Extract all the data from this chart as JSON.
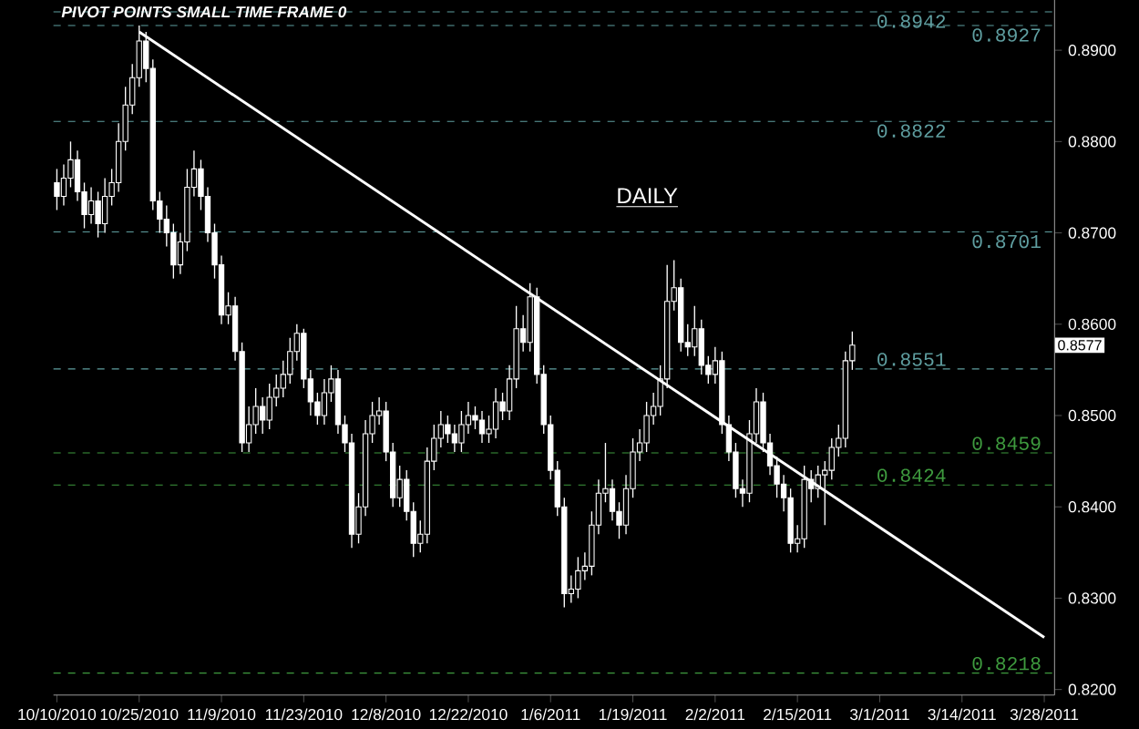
{
  "chart_data": {
    "type": "candlestick",
    "title": "PIVOT POINTS SMALL TIME FRAME 0",
    "color": "#ffffff",
    "categories": [
      "10/10/2010",
      null,
      null,
      null,
      null,
      null,
      null,
      null,
      null,
      null,
      null,
      null,
      "10/25/2010",
      null,
      null,
      null,
      null,
      null,
      null,
      null,
      null,
      null,
      null,
      null,
      "11/9/2010",
      null,
      null,
      null,
      null,
      null,
      null,
      null,
      null,
      null,
      null,
      null,
      "11/23/2010",
      null,
      null,
      null,
      null,
      null,
      null,
      null,
      null,
      null,
      null,
      null,
      "12/8/2010",
      null,
      null,
      null,
      null,
      null,
      null,
      null,
      null,
      null,
      null,
      null,
      "12/22/2010",
      null,
      null,
      null,
      null,
      null,
      null,
      null,
      null,
      null,
      null,
      null,
      "1/6/2011",
      null,
      null,
      null,
      null,
      null,
      null,
      null,
      null,
      null,
      null,
      null,
      "1/19/2011",
      null,
      null,
      null,
      null,
      null,
      null,
      null,
      null,
      null,
      null,
      null,
      "2/2/2011",
      null,
      null,
      null,
      null,
      null,
      null,
      null,
      null,
      null,
      null,
      null,
      "2/15/2011",
      null,
      null,
      null,
      null,
      null,
      null,
      null,
      null,
      null,
      null,
      null,
      "3/1/2011",
      null,
      null,
      null,
      null,
      null,
      null,
      null,
      null,
      null,
      null,
      null,
      "3/14/2011",
      null,
      null,
      null,
      null,
      null,
      null,
      null,
      null,
      null,
      null,
      null,
      "3/28/2011",
      null
    ],
    "ohlc": [
      [
        0.8755,
        0.877,
        0.8725,
        0.874
      ],
      [
        0.874,
        0.8775,
        0.873,
        0.876
      ],
      [
        0.876,
        0.88,
        0.875,
        0.878
      ],
      [
        0.878,
        0.879,
        0.8735,
        0.8745
      ],
      [
        0.8745,
        0.8755,
        0.8705,
        0.872
      ],
      [
        0.872,
        0.875,
        0.871,
        0.8735
      ],
      [
        0.8735,
        0.8745,
        0.8695,
        0.871
      ],
      [
        0.871,
        0.876,
        0.87,
        0.874
      ],
      [
        0.874,
        0.877,
        0.873,
        0.8755
      ],
      [
        0.8755,
        0.882,
        0.8745,
        0.88
      ],
      [
        0.88,
        0.886,
        0.879,
        0.884
      ],
      [
        0.884,
        0.8885,
        0.883,
        0.887
      ],
      [
        0.887,
        0.8927,
        0.886,
        0.891
      ],
      [
        0.891,
        0.892,
        0.8865,
        0.888
      ],
      [
        0.888,
        0.889,
        0.8725,
        0.8735
      ],
      [
        0.8735,
        0.8745,
        0.87,
        0.8715
      ],
      [
        0.8715,
        0.873,
        0.8685,
        0.87
      ],
      [
        0.87,
        0.871,
        0.865,
        0.8665
      ],
      [
        0.8665,
        0.87,
        0.8655,
        0.869
      ],
      [
        0.869,
        0.877,
        0.868,
        0.875
      ],
      [
        0.875,
        0.879,
        0.874,
        0.877
      ],
      [
        0.877,
        0.878,
        0.8725,
        0.874
      ],
      [
        0.874,
        0.875,
        0.869,
        0.87
      ],
      [
        0.87,
        0.871,
        0.865,
        0.8665
      ],
      [
        0.8665,
        0.8675,
        0.86,
        0.861
      ],
      [
        0.861,
        0.8635,
        0.86,
        0.862
      ],
      [
        0.862,
        0.863,
        0.856,
        0.857
      ],
      [
        0.857,
        0.858,
        0.846,
        0.847
      ],
      [
        0.847,
        0.851,
        0.846,
        0.849
      ],
      [
        0.849,
        0.853,
        0.848,
        0.851
      ],
      [
        0.851,
        0.852,
        0.848,
        0.8495
      ],
      [
        0.8495,
        0.8535,
        0.8485,
        0.852
      ],
      [
        0.852,
        0.8545,
        0.851,
        0.853
      ],
      [
        0.853,
        0.856,
        0.852,
        0.8545
      ],
      [
        0.8545,
        0.8585,
        0.8535,
        0.857
      ],
      [
        0.857,
        0.86,
        0.856,
        0.859
      ],
      [
        0.859,
        0.8595,
        0.853,
        0.854
      ],
      [
        0.854,
        0.855,
        0.85,
        0.8515
      ],
      [
        0.8515,
        0.8525,
        0.849,
        0.85
      ],
      [
        0.85,
        0.854,
        0.849,
        0.8525
      ],
      [
        0.8525,
        0.8555,
        0.8515,
        0.854
      ],
      [
        0.854,
        0.855,
        0.848,
        0.849
      ],
      [
        0.849,
        0.85,
        0.846,
        0.847
      ],
      [
        0.847,
        0.848,
        0.8355,
        0.837
      ],
      [
        0.837,
        0.8415,
        0.836,
        0.84
      ],
      [
        0.84,
        0.8495,
        0.839,
        0.848
      ],
      [
        0.848,
        0.8515,
        0.847,
        0.85
      ],
      [
        0.85,
        0.852,
        0.849,
        0.8505
      ],
      [
        0.8505,
        0.8515,
        0.845,
        0.846
      ],
      [
        0.846,
        0.847,
        0.84,
        0.841
      ],
      [
        0.841,
        0.8445,
        0.84,
        0.843
      ],
      [
        0.843,
        0.844,
        0.8385,
        0.8395
      ],
      [
        0.8395,
        0.8405,
        0.8345,
        0.836
      ],
      [
        0.836,
        0.8385,
        0.835,
        0.837
      ],
      [
        0.837,
        0.8465,
        0.836,
        0.845
      ],
      [
        0.845,
        0.849,
        0.844,
        0.8475
      ],
      [
        0.8475,
        0.8505,
        0.8465,
        0.849
      ],
      [
        0.849,
        0.85,
        0.847,
        0.848
      ],
      [
        0.848,
        0.849,
        0.846,
        0.847
      ],
      [
        0.847,
        0.8505,
        0.846,
        0.849
      ],
      [
        0.849,
        0.8515,
        0.848,
        0.85
      ],
      [
        0.85,
        0.851,
        0.8485,
        0.8495
      ],
      [
        0.8495,
        0.8505,
        0.847,
        0.848
      ],
      [
        0.848,
        0.85,
        0.847,
        0.8485
      ],
      [
        0.8485,
        0.853,
        0.8475,
        0.8515
      ],
      [
        0.8515,
        0.8525,
        0.8495,
        0.8505
      ],
      [
        0.8505,
        0.8555,
        0.8495,
        0.854
      ],
      [
        0.854,
        0.862,
        0.853,
        0.8595
      ],
      [
        0.8595,
        0.861,
        0.857,
        0.858
      ],
      [
        0.858,
        0.8645,
        0.857,
        0.863
      ],
      [
        0.863,
        0.864,
        0.8535,
        0.8545
      ],
      [
        0.8545,
        0.8555,
        0.848,
        0.849
      ],
      [
        0.849,
        0.85,
        0.843,
        0.844
      ],
      [
        0.844,
        0.845,
        0.839,
        0.84
      ],
      [
        0.84,
        0.841,
        0.829,
        0.8305
      ],
      [
        0.8305,
        0.8325,
        0.8295,
        0.831
      ],
      [
        0.831,
        0.8345,
        0.83,
        0.833
      ],
      [
        0.833,
        0.835,
        0.832,
        0.8335
      ],
      [
        0.8335,
        0.8395,
        0.8325,
        0.838
      ],
      [
        0.838,
        0.843,
        0.837,
        0.8415
      ],
      [
        0.8415,
        0.847,
        0.8405,
        0.842
      ],
      [
        0.842,
        0.843,
        0.8385,
        0.8395
      ],
      [
        0.8395,
        0.8405,
        0.8365,
        0.838
      ],
      [
        0.838,
        0.8435,
        0.837,
        0.842
      ],
      [
        0.842,
        0.8475,
        0.841,
        0.846
      ],
      [
        0.846,
        0.8485,
        0.845,
        0.847
      ],
      [
        0.847,
        0.8515,
        0.846,
        0.85
      ],
      [
        0.85,
        0.8525,
        0.849,
        0.851
      ],
      [
        0.851,
        0.8555,
        0.85,
        0.854
      ],
      [
        0.854,
        0.8665,
        0.853,
        0.8625
      ],
      [
        0.8625,
        0.867,
        0.8615,
        0.864
      ],
      [
        0.864,
        0.865,
        0.857,
        0.858
      ],
      [
        0.858,
        0.86,
        0.8565,
        0.8575
      ],
      [
        0.8575,
        0.862,
        0.8565,
        0.8595
      ],
      [
        0.8595,
        0.8605,
        0.8545,
        0.8555
      ],
      [
        0.8555,
        0.8565,
        0.8535,
        0.8545
      ],
      [
        0.8545,
        0.8575,
        0.8535,
        0.856
      ],
      [
        0.856,
        0.857,
        0.848,
        0.849
      ],
      [
        0.849,
        0.85,
        0.845,
        0.846
      ],
      [
        0.846,
        0.847,
        0.841,
        0.842
      ],
      [
        0.842,
        0.843,
        0.84,
        0.8415
      ],
      [
        0.8415,
        0.8495,
        0.8405,
        0.848
      ],
      [
        0.848,
        0.853,
        0.847,
        0.8515
      ],
      [
        0.8515,
        0.8525,
        0.846,
        0.847
      ],
      [
        0.847,
        0.848,
        0.8435,
        0.8445
      ],
      [
        0.8445,
        0.8455,
        0.841,
        0.8425
      ],
      [
        0.8425,
        0.8435,
        0.8395,
        0.841
      ],
      [
        0.841,
        0.842,
        0.835,
        0.836
      ],
      [
        0.836,
        0.838,
        0.835,
        0.8365
      ],
      [
        0.8365,
        0.8445,
        0.8355,
        0.843
      ],
      [
        0.843,
        0.844,
        0.8405,
        0.842
      ],
      [
        0.842,
        0.8445,
        0.841,
        0.8435
      ],
      [
        0.8435,
        0.845,
        0.838,
        0.844
      ],
      [
        0.844,
        0.8475,
        0.843,
        0.8465
      ],
      [
        0.8465,
        0.849,
        0.8455,
        0.8475
      ],
      [
        0.8475,
        0.857,
        0.8465,
        0.856
      ],
      [
        0.856,
        0.8592,
        0.855,
        0.8577
      ],
      null,
      null,
      null,
      null,
      null,
      null,
      null,
      null,
      null,
      null,
      null,
      null,
      null,
      null,
      null,
      null,
      null,
      null,
      null,
      null,
      null,
      null,
      null,
      null,
      null,
      null,
      null,
      null,
      null
    ],
    "series": [
      {
        "type": "line",
        "x": [
          "10/25/2010",
          "3/28/2011"
        ],
        "values": [
          0.892,
          0.8257
        ],
        "color": "#ffffff"
      }
    ],
    "ylim": [
      0.8194,
      0.8955
    ],
    "yticks": [
      {
        "value": 0.82,
        "label": "0.8200"
      },
      {
        "value": 0.83,
        "label": "0.8300"
      },
      {
        "value": 0.84,
        "label": "0.8400"
      },
      {
        "value": 0.85,
        "label": "0.8500"
      },
      {
        "value": 0.86,
        "label": "0.8600"
      },
      {
        "value": 0.87,
        "label": "0.8700"
      },
      {
        "value": 0.88,
        "label": "0.8800"
      },
      {
        "value": 0.89,
        "label": "0.8900"
      }
    ],
    "ref_lines": [
      {
        "axis": "y",
        "value": 0.8942,
        "label": "0.8942",
        "color": "#5f9ea0",
        "line_style": "dashed"
      },
      {
        "axis": "y",
        "value": 0.8927,
        "label": "0.8927",
        "color": "#5f9ea0",
        "line_style": "dashed"
      },
      {
        "axis": "y",
        "value": 0.8822,
        "label": "0.8822",
        "color": "#5f9ea0",
        "line_style": "dashed"
      },
      {
        "axis": "y",
        "value": 0.8701,
        "label": "0.8701",
        "color": "#5f9ea0",
        "line_style": "dashed"
      },
      {
        "axis": "y",
        "value": 0.8551,
        "label": "0.8551",
        "color": "#5f9ea0",
        "line_style": "dashed"
      },
      {
        "axis": "y",
        "value": 0.8459,
        "label": "0.8459",
        "color": "#3e9a3e",
        "line_style": "dashed"
      },
      {
        "axis": "y",
        "value": 0.8424,
        "label": "0.8424",
        "color": "#3e9a3e",
        "line_style": "dashed"
      },
      {
        "axis": "y",
        "value": 0.8218,
        "label": "0.8218",
        "color": "#3e9a3e",
        "line_style": "dashed"
      }
    ],
    "annotations": [
      "DAILY",
      {
        "text": "0.8577",
        "y": 0.8577
      }
    ]
  }
}
